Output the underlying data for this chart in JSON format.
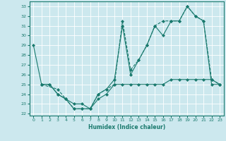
{
  "xlabel": "Humidex (Indice chaleur)",
  "xlim": [
    -0.5,
    23.5
  ],
  "ylim": [
    21.8,
    33.5
  ],
  "yticks": [
    22,
    23,
    24,
    25,
    26,
    27,
    28,
    29,
    30,
    31,
    32,
    33
  ],
  "xticks": [
    0,
    1,
    2,
    3,
    4,
    5,
    6,
    7,
    8,
    9,
    10,
    11,
    12,
    13,
    14,
    15,
    16,
    17,
    18,
    19,
    20,
    21,
    22,
    23
  ],
  "line_color": "#1a7a6e",
  "bg_color": "#cce8ee",
  "grid_color": "#ffffff",
  "line1_x": [
    0,
    1,
    2,
    3,
    4,
    5,
    6,
    7,
    8,
    9,
    10,
    11,
    12,
    13,
    14,
    15,
    16,
    17,
    18,
    19,
    20,
    21,
    22,
    23
  ],
  "line1_y": [
    29,
    25,
    25,
    24,
    23.5,
    22.5,
    22.5,
    22.5,
    24,
    24.5,
    25.5,
    31,
    26,
    27.5,
    29,
    31,
    30,
    31.5,
    31.5,
    33,
    32,
    31.5,
    25,
    25
  ],
  "line2_x": [
    1,
    3,
    4,
    5,
    6,
    7,
    8,
    9,
    10,
    11,
    12,
    13,
    14,
    15,
    16,
    17,
    18,
    19,
    20,
    21,
    22,
    23
  ],
  "line2_y": [
    25,
    24.5,
    23.5,
    22.5,
    22.5,
    22.5,
    24,
    24.5,
    25,
    31.5,
    26.5,
    27.5,
    29,
    31,
    31.5,
    31.5,
    31.5,
    33,
    32,
    31.5,
    25.5,
    25
  ],
  "line3_x": [
    1,
    2,
    3,
    4,
    5,
    6,
    7,
    8,
    9,
    10,
    11,
    12,
    13,
    14,
    15,
    16,
    17,
    18,
    19,
    20,
    21,
    22,
    23
  ],
  "line3_y": [
    25,
    25,
    24,
    23.5,
    23,
    23,
    22.5,
    23.5,
    24,
    25,
    25,
    25,
    25,
    25,
    25,
    25,
    25.5,
    25.5,
    25.5,
    25.5,
    25.5,
    25.5,
    25
  ]
}
